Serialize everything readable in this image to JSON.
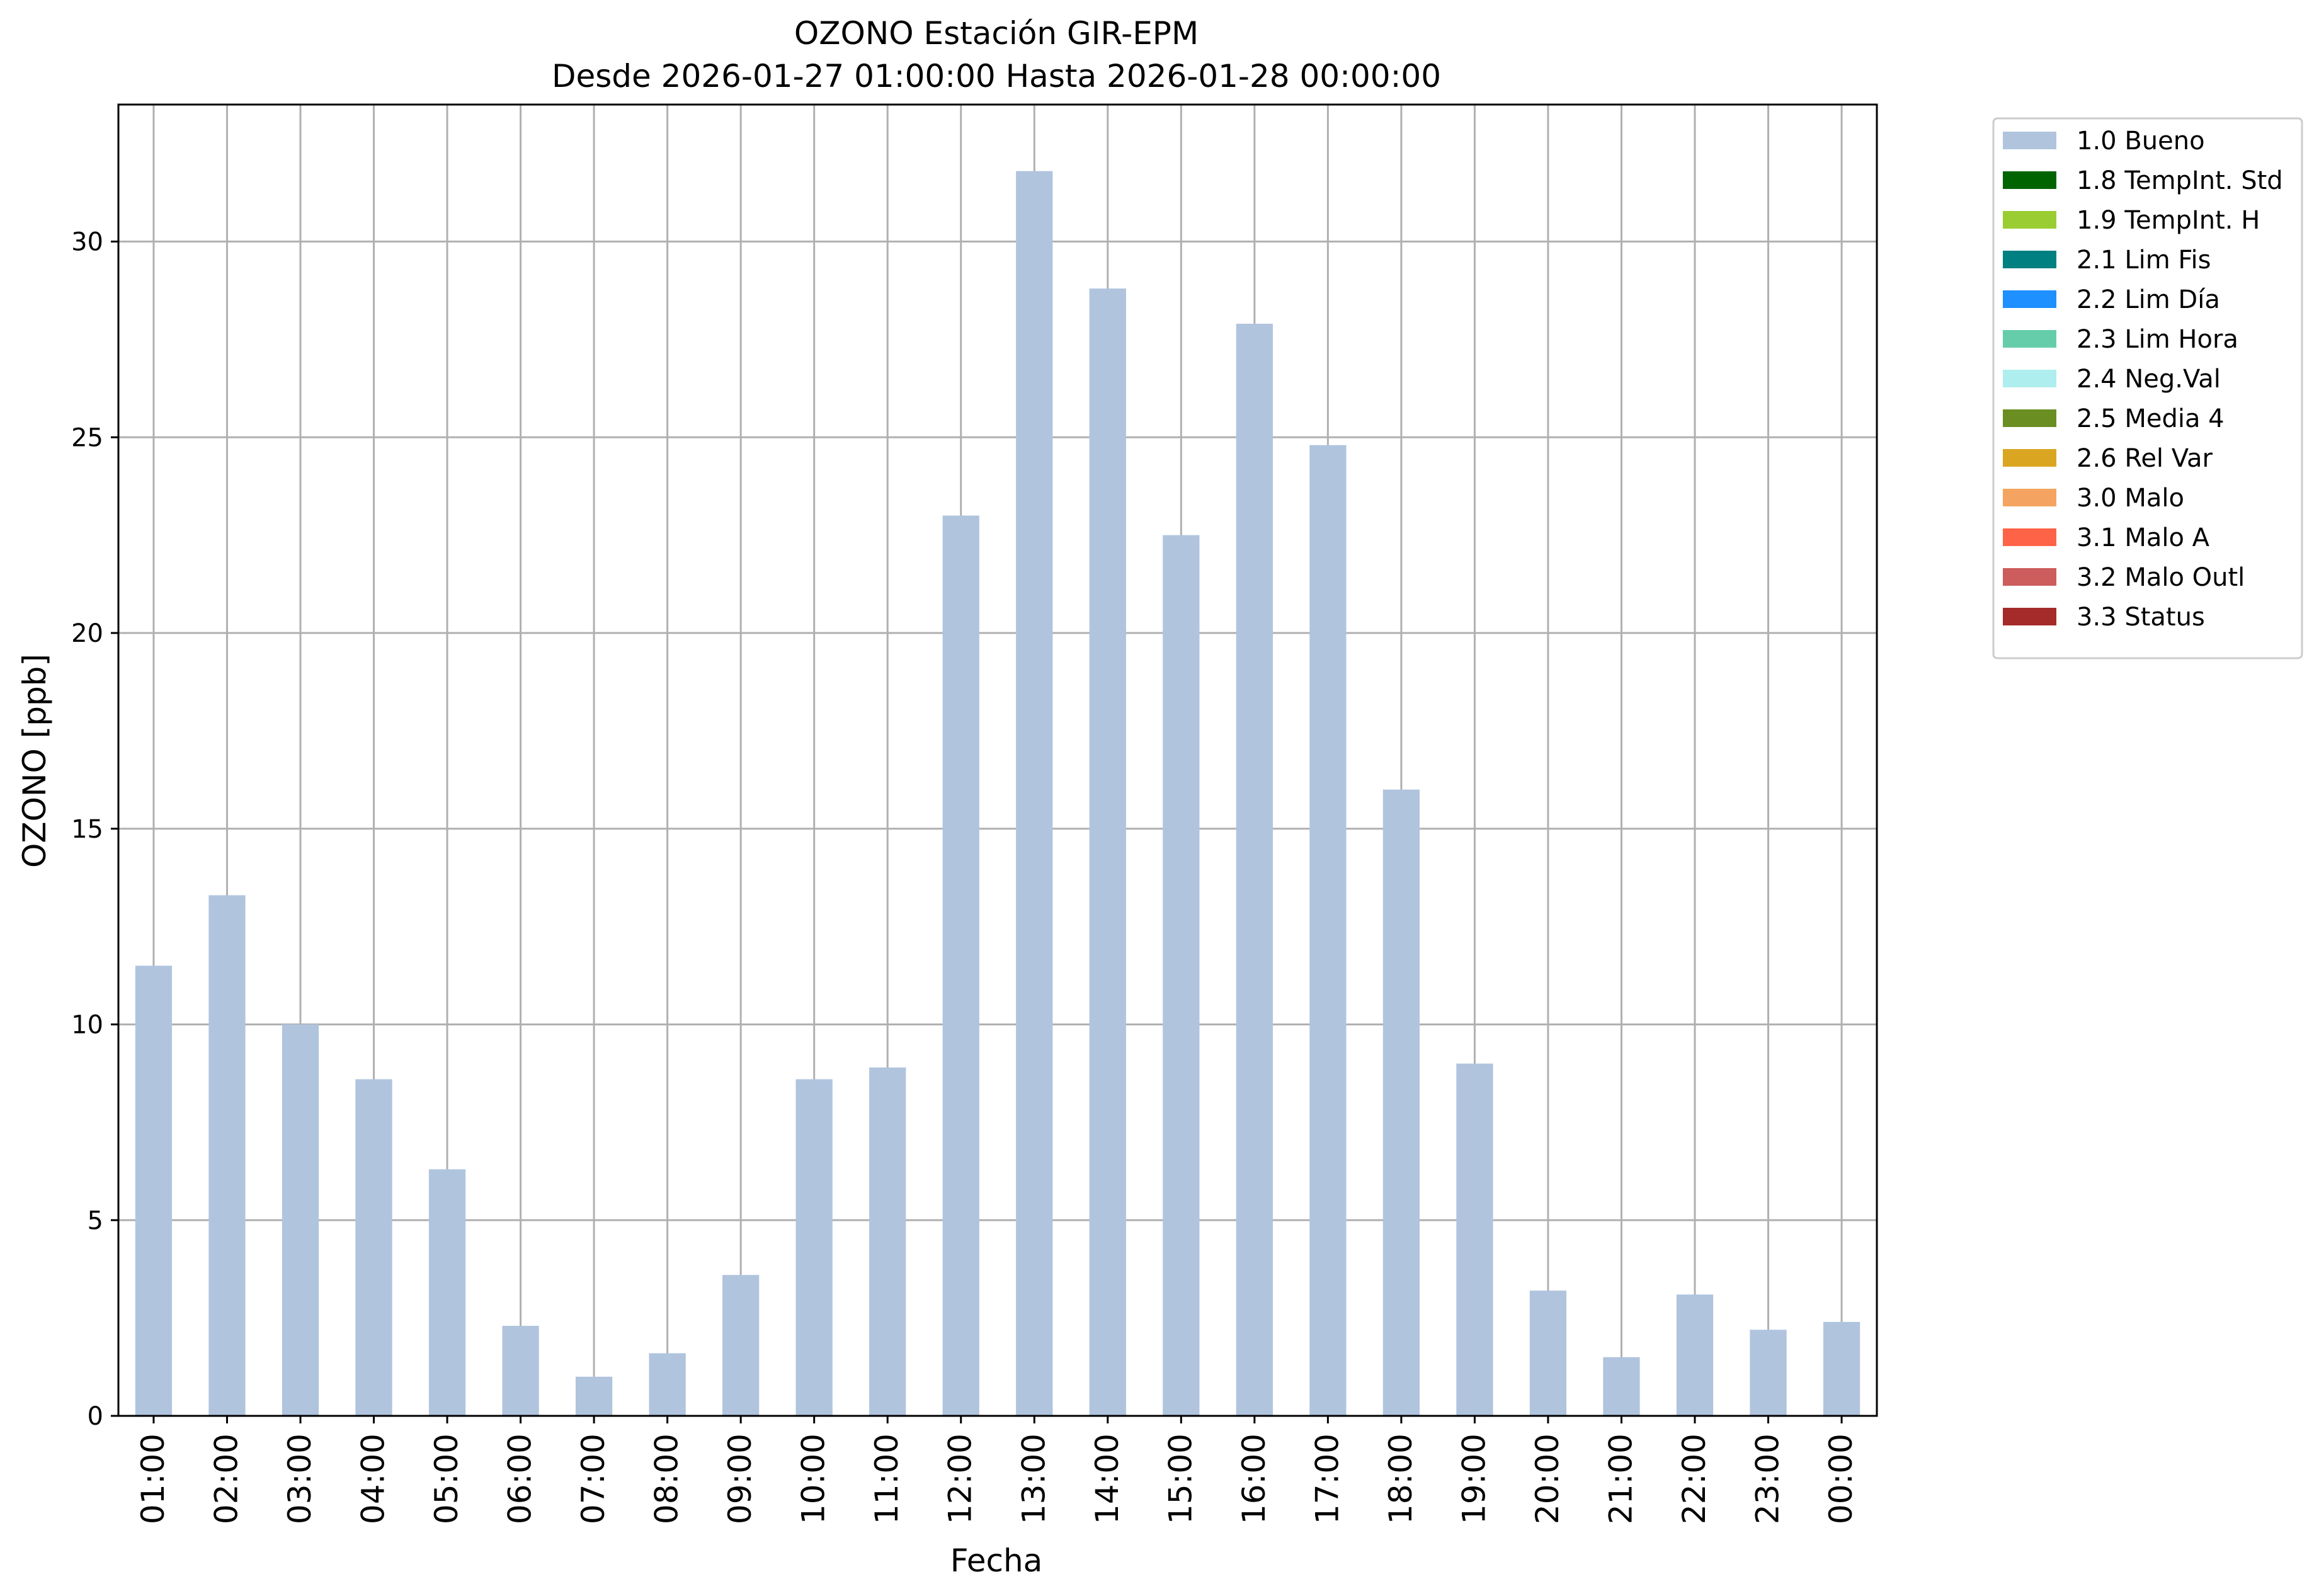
{
  "chart_data": {
    "type": "bar",
    "title": "OZONO Estación GIR-EPM",
    "subtitle": "Desde 2026-01-27 01:00:00 Hasta 2026-01-28 00:00:00",
    "xlabel": "Fecha",
    "ylabel": "OZONO [ppb]",
    "ylim": [
      0,
      33.5
    ],
    "yticks": [
      0,
      5,
      10,
      15,
      20,
      25,
      30
    ],
    "grid": true,
    "legend_position": "outside-right-top",
    "categories": [
      "01:00",
      "02:00",
      "03:00",
      "04:00",
      "05:00",
      "06:00",
      "07:00",
      "08:00",
      "09:00",
      "10:00",
      "11:00",
      "12:00",
      "13:00",
      "14:00",
      "15:00",
      "16:00",
      "17:00",
      "18:00",
      "19:00",
      "20:00",
      "21:00",
      "22:00",
      "23:00",
      "00:00"
    ],
    "series": [
      {
        "name": "1.0 Bueno",
        "color": "#b0c4de",
        "values": [
          11.5,
          13.3,
          10.0,
          8.6,
          6.3,
          2.3,
          1.0,
          1.6,
          3.6,
          8.6,
          8.9,
          23.0,
          31.8,
          28.8,
          22.5,
          27.9,
          24.8,
          16.0,
          9.0,
          3.2,
          1.5,
          3.1,
          2.2,
          2.4
        ]
      }
    ],
    "legend": [
      {
        "label": "1.0 Bueno",
        "color": "#b0c4de"
      },
      {
        "label": "1.8 TempInt. Std",
        "color": "#006400"
      },
      {
        "label": "1.9 TempInt. H",
        "color": "#9acd32"
      },
      {
        "label": "2.1 Lim Fis",
        "color": "#008080"
      },
      {
        "label": "2.2 Lim Día",
        "color": "#1e90ff"
      },
      {
        "label": "2.3 Lim Hora",
        "color": "#66cdaa"
      },
      {
        "label": "2.4 Neg.Val",
        "color": "#afeeee"
      },
      {
        "label": "2.5 Media 4",
        "color": "#6b8e23"
      },
      {
        "label": "2.6 Rel Var",
        "color": "#daa520"
      },
      {
        "label": "3.0 Malo",
        "color": "#f4a460"
      },
      {
        "label": "3.1 Malo A",
        "color": "#ff6347"
      },
      {
        "label": "3.2 Malo Outl",
        "color": "#cd5c5c"
      },
      {
        "label": "3.3 Status",
        "color": "#a52a2a"
      }
    ]
  }
}
